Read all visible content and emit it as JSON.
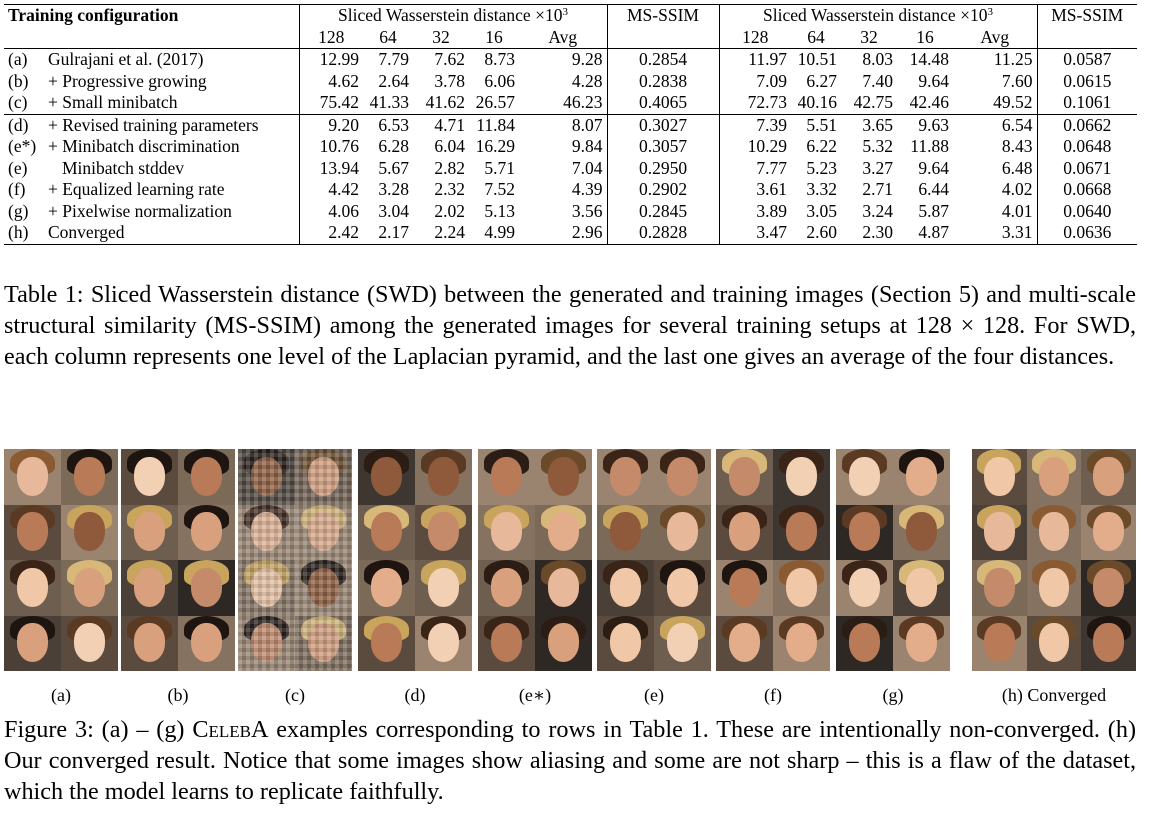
{
  "table": {
    "header": {
      "config_label": "Training configuration",
      "group1_title": "Sliced Wasserstein distance ×10",
      "group1_exp": "3",
      "msssim1": "MS-SSIM",
      "group2_title": "Sliced Wasserstein distance ×10",
      "group2_exp": "3",
      "msssim2": "MS-SSIM",
      "cols": [
        "128",
        "64",
        "32",
        "16",
        "Avg"
      ]
    },
    "rows": [
      {
        "tag": "(a)",
        "name": "Gulrajani et al. (2017)",
        "a": [
          "12.99",
          "7.79",
          "7.62",
          "8.73",
          "9.28"
        ],
        "am": "0.2854",
        "b": [
          "11.97",
          "10.51",
          "8.03",
          "14.48",
          "11.25"
        ],
        "bm": "0.0587"
      },
      {
        "tag": "(b)",
        "name": "+ Progressive growing",
        "a": [
          "4.62",
          "2.64",
          "3.78",
          "6.06",
          "4.28"
        ],
        "am": "0.2838",
        "b": [
          "7.09",
          "6.27",
          "7.40",
          "9.64",
          "7.60"
        ],
        "bm": "0.0615"
      },
      {
        "tag": "(c)",
        "name": "+ Small minibatch",
        "a": [
          "75.42",
          "41.33",
          "41.62",
          "26.57",
          "46.23"
        ],
        "am": "0.4065",
        "b": [
          "72.73",
          "40.16",
          "42.75",
          "42.46",
          "49.52"
        ],
        "bm": "0.1061"
      },
      {
        "tag": "(d)",
        "name": "+ Revised training parameters",
        "a": [
          "9.20",
          "6.53",
          "4.71",
          "11.84",
          "8.07"
        ],
        "am": "0.3027",
        "b": [
          "7.39",
          "5.51",
          "3.65",
          "9.63",
          "6.54"
        ],
        "bm": "0.0662"
      },
      {
        "tag": "(e*)",
        "name": "+ Minibatch discrimination",
        "a": [
          "10.76",
          "6.28",
          "6.04",
          "16.29",
          "9.84"
        ],
        "am": "0.3057",
        "b": [
          "10.29",
          "6.22",
          "5.32",
          "11.88",
          "8.43"
        ],
        "bm": "0.0648"
      },
      {
        "tag": "(e)",
        "name": "Minibatch stddev",
        "a": [
          "13.94",
          "5.67",
          "2.82",
          "5.71",
          "7.04"
        ],
        "am": "0.2950",
        "b": [
          "7.77",
          "5.23",
          "3.27",
          "9.64",
          "6.48"
        ],
        "bm": "0.0671"
      },
      {
        "tag": "(f)",
        "name": "+ Equalized learning rate",
        "a": [
          "4.42",
          "3.28",
          "2.32",
          "7.52",
          "4.39"
        ],
        "am": "0.2902",
        "b": [
          "3.61",
          "3.32",
          "2.71",
          "6.44",
          "4.02"
        ],
        "bm": "0.0668"
      },
      {
        "tag": "(g)",
        "name": "+ Pixelwise normalization",
        "a": [
          "4.06",
          "3.04",
          "2.02",
          "5.13",
          "3.56"
        ],
        "am": "0.2845",
        "b": [
          "3.89",
          "3.05",
          "3.24",
          "5.87",
          "4.01"
        ],
        "bm": "0.0640"
      },
      {
        "tag": "(h)",
        "name": "Converged",
        "a": [
          "2.42",
          "2.17",
          "2.24",
          "4.99",
          "2.96"
        ],
        "am": "0.2828",
        "b": [
          "3.47",
          "2.60",
          "2.30",
          "4.87",
          "3.31"
        ],
        "bm": "0.0636"
      }
    ],
    "bold": {
      "b.a.1": true,
      "b.am": true,
      "a.bm": true,
      "f.b.0": true,
      "f.b.2": true,
      "g.a.0": true,
      "g.a.2": true,
      "g.a.3": true,
      "g.a.4": true,
      "g.b.1": true,
      "g.b.3": true,
      "g.b.4": true
    }
  },
  "table_caption": "Table 1: Sliced Wasserstein distance (SWD) between the generated and training images (Section 5) and multi-scale structural similarity (MS-SSIM) among the generated images for several training setups at 128 × 128. For SWD, each column represents one level of the Laplacian pyramid, and the last one gives an average of the four distances.",
  "figure": {
    "labels": [
      "(a)",
      "(b)",
      "(c)",
      "(d)",
      "(e∗)",
      "(e)",
      "(f)",
      "(g)",
      "(h) Converged"
    ],
    "caption_prefix": "Figure 3: (a) – (g) ",
    "caption_dataset": "CelebA",
    "caption_rest": " examples corresponding to rows in Table 1. These are intentionally non-converged. (h) Our converged result. Notice that some images show aliasing and some are not sharp – this is a flaw of the dataset, which the model learns to replicate faithfully."
  }
}
